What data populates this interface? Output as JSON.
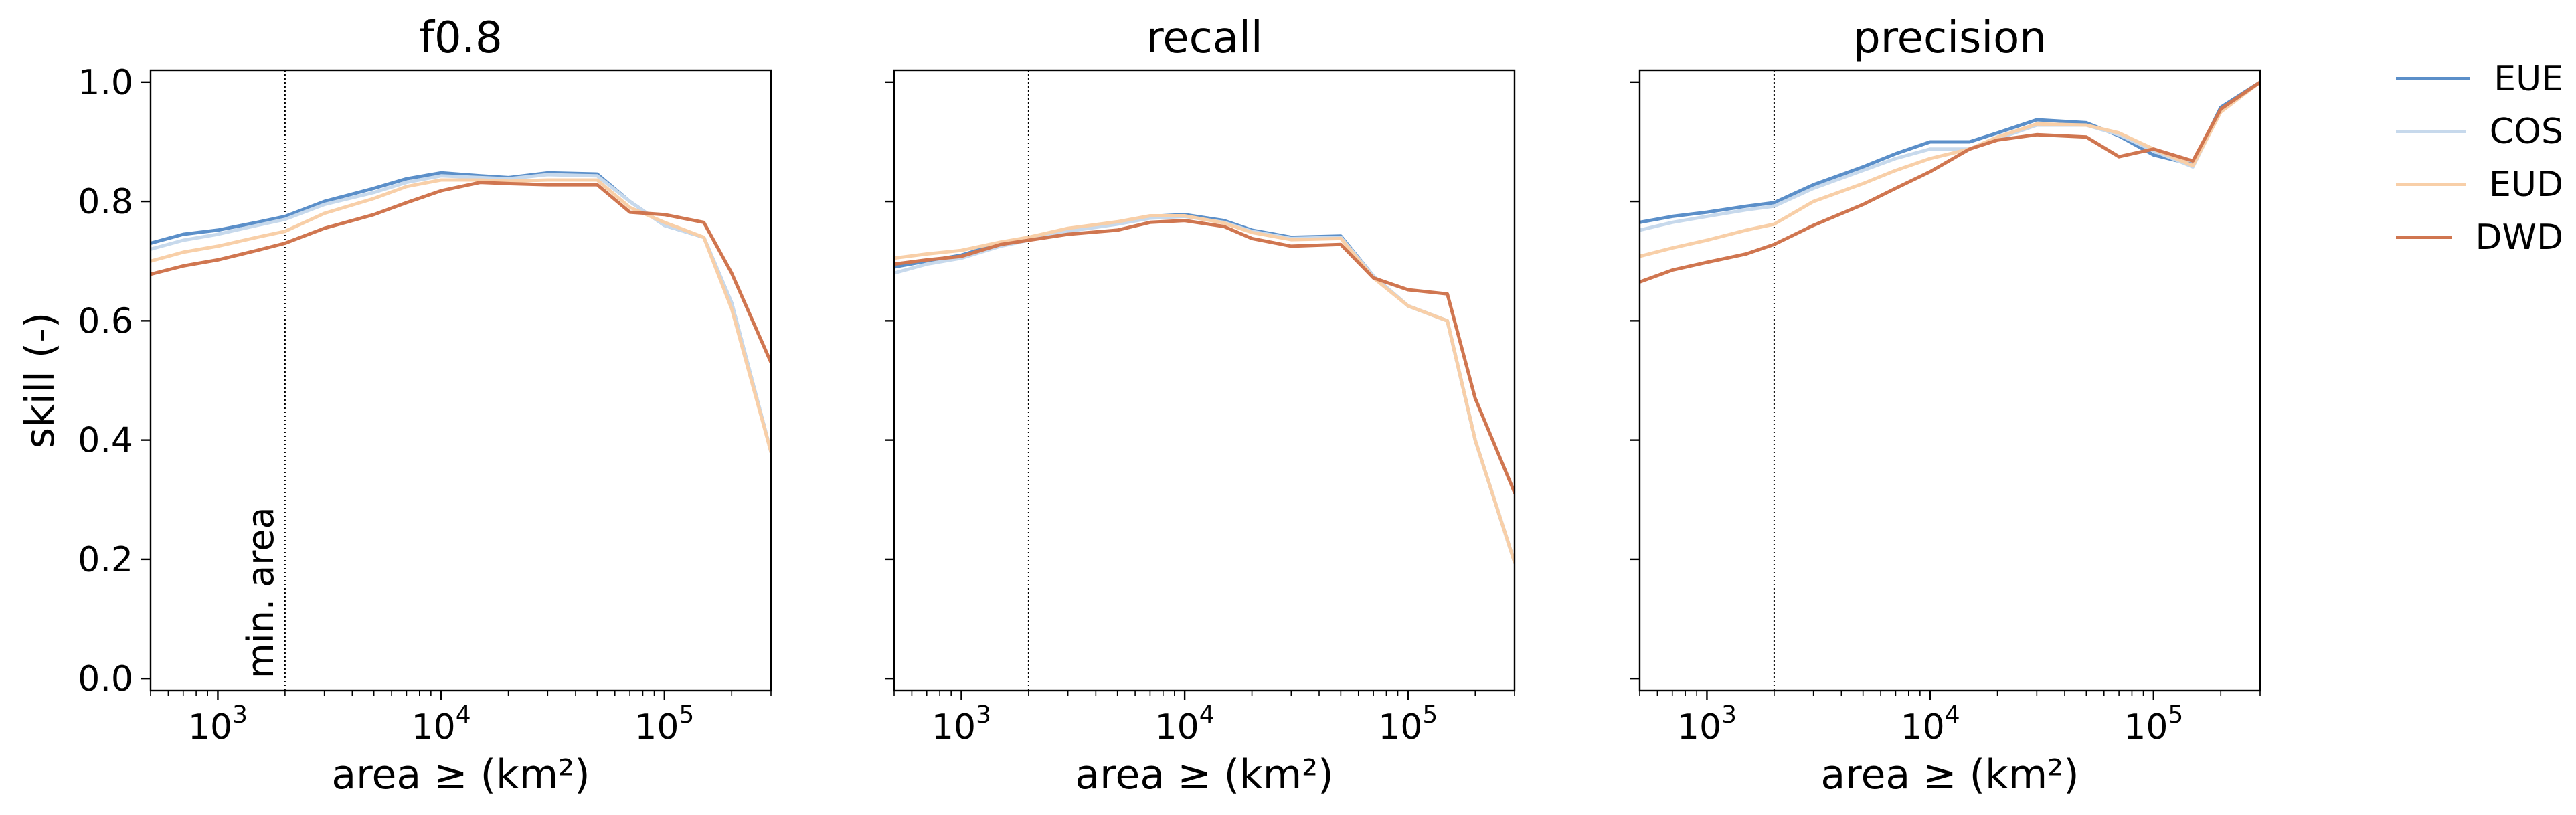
{
  "chart_data": {
    "type": "line",
    "x": [
      500,
      700,
      1000,
      1500,
      2000,
      3000,
      5000,
      7000,
      10000,
      15000,
      20000,
      30000,
      50000,
      70000,
      100000,
      150000,
      200000,
      300000
    ],
    "xscale": "log",
    "xlim": [
      500,
      300000
    ],
    "xlabel": "area ≥ (km²)",
    "ylabel": "skill (-)",
    "ylim": [
      -0.02,
      1.02
    ],
    "yticks": [
      0.0,
      0.2,
      0.4,
      0.6,
      0.8,
      1.0
    ],
    "ytick_labels": [
      "0.0",
      "0.2",
      "0.4",
      "0.6",
      "0.8",
      "1.0"
    ],
    "xticks": [
      1000,
      10000,
      100000
    ],
    "xtick_labels": [
      {
        "base": "10",
        "exp": "3"
      },
      {
        "base": "10",
        "exp": "4"
      },
      {
        "base": "10",
        "exp": "5"
      }
    ],
    "min_area": 2000,
    "min_area_label": "min. area",
    "grid": false,
    "legend_position": "right",
    "series_styles": [
      {
        "name": "EUE",
        "color": "#5b8fc9"
      },
      {
        "name": "COS",
        "color": "#c7d9ec"
      },
      {
        "name": "EUD",
        "color": "#f8cfa8"
      },
      {
        "name": "DWD",
        "color": "#d07650"
      }
    ],
    "panels": [
      {
        "title": "f0.8",
        "series": [
          {
            "name": "EUE",
            "values": [
              0.73,
              0.745,
              0.752,
              0.765,
              0.775,
              0.8,
              0.822,
              0.838,
              0.848,
              0.843,
              0.84,
              0.848,
              0.846,
              0.8,
              0.76,
              0.74,
              0.63,
              0.38
            ]
          },
          {
            "name": "COS",
            "values": [
              0.72,
              0.735,
              0.745,
              0.76,
              0.77,
              0.795,
              0.815,
              0.832,
              0.843,
              0.84,
              0.838,
              0.845,
              0.843,
              0.8,
              0.76,
              0.74,
              0.63,
              0.38
            ]
          },
          {
            "name": "EUD",
            "values": [
              0.7,
              0.715,
              0.725,
              0.74,
              0.75,
              0.78,
              0.805,
              0.825,
              0.836,
              0.836,
              0.834,
              0.836,
              0.836,
              0.79,
              0.765,
              0.74,
              0.62,
              0.38
            ]
          },
          {
            "name": "DWD",
            "values": [
              0.678,
              0.692,
              0.702,
              0.718,
              0.73,
              0.755,
              0.778,
              0.798,
              0.818,
              0.832,
              0.83,
              0.828,
              0.828,
              0.782,
              0.778,
              0.765,
              0.68,
              0.53
            ]
          }
        ]
      },
      {
        "title": "recall",
        "series": [
          {
            "name": "EUE",
            "values": [
              0.69,
              0.7,
              0.71,
              0.73,
              0.738,
              0.752,
              0.765,
              0.775,
              0.778,
              0.768,
              0.752,
              0.74,
              0.742,
              0.675,
              0.625,
              0.6,
              0.4,
              0.195
            ]
          },
          {
            "name": "COS",
            "values": [
              0.68,
              0.695,
              0.705,
              0.725,
              0.735,
              0.75,
              0.762,
              0.772,
              0.775,
              0.765,
              0.75,
              0.738,
              0.74,
              0.675,
              0.625,
              0.6,
              0.4,
              0.195
            ]
          },
          {
            "name": "EUD",
            "values": [
              0.705,
              0.712,
              0.718,
              0.732,
              0.74,
              0.755,
              0.766,
              0.776,
              0.776,
              0.764,
              0.748,
              0.736,
              0.738,
              0.672,
              0.625,
              0.6,
              0.4,
              0.195
            ]
          },
          {
            "name": "DWD",
            "values": [
              0.695,
              0.702,
              0.708,
              0.728,
              0.735,
              0.745,
              0.752,
              0.765,
              0.768,
              0.758,
              0.738,
              0.725,
              0.728,
              0.672,
              0.652,
              0.645,
              0.47,
              0.312
            ]
          }
        ]
      },
      {
        "title": "precision",
        "series": [
          {
            "name": "EUE",
            "values": [
              0.765,
              0.775,
              0.782,
              0.792,
              0.798,
              0.828,
              0.858,
              0.88,
              0.9,
              0.9,
              0.915,
              0.937,
              0.932,
              0.91,
              0.878,
              0.862,
              0.958,
              1.0
            ]
          },
          {
            "name": "COS",
            "values": [
              0.752,
              0.765,
              0.775,
              0.786,
              0.792,
              0.822,
              0.852,
              0.872,
              0.888,
              0.888,
              0.905,
              0.928,
              0.928,
              0.912,
              0.885,
              0.858,
              0.952,
              1.0
            ]
          },
          {
            "name": "EUD",
            "values": [
              0.708,
              0.722,
              0.735,
              0.752,
              0.762,
              0.8,
              0.83,
              0.852,
              0.872,
              0.888,
              0.908,
              0.93,
              0.928,
              0.915,
              0.888,
              0.86,
              0.95,
              1.0
            ]
          },
          {
            "name": "DWD",
            "values": [
              0.665,
              0.685,
              0.698,
              0.712,
              0.728,
              0.76,
              0.795,
              0.822,
              0.85,
              0.888,
              0.903,
              0.912,
              0.908,
              0.875,
              0.888,
              0.868,
              0.955,
              1.0
            ]
          }
        ]
      }
    ]
  }
}
